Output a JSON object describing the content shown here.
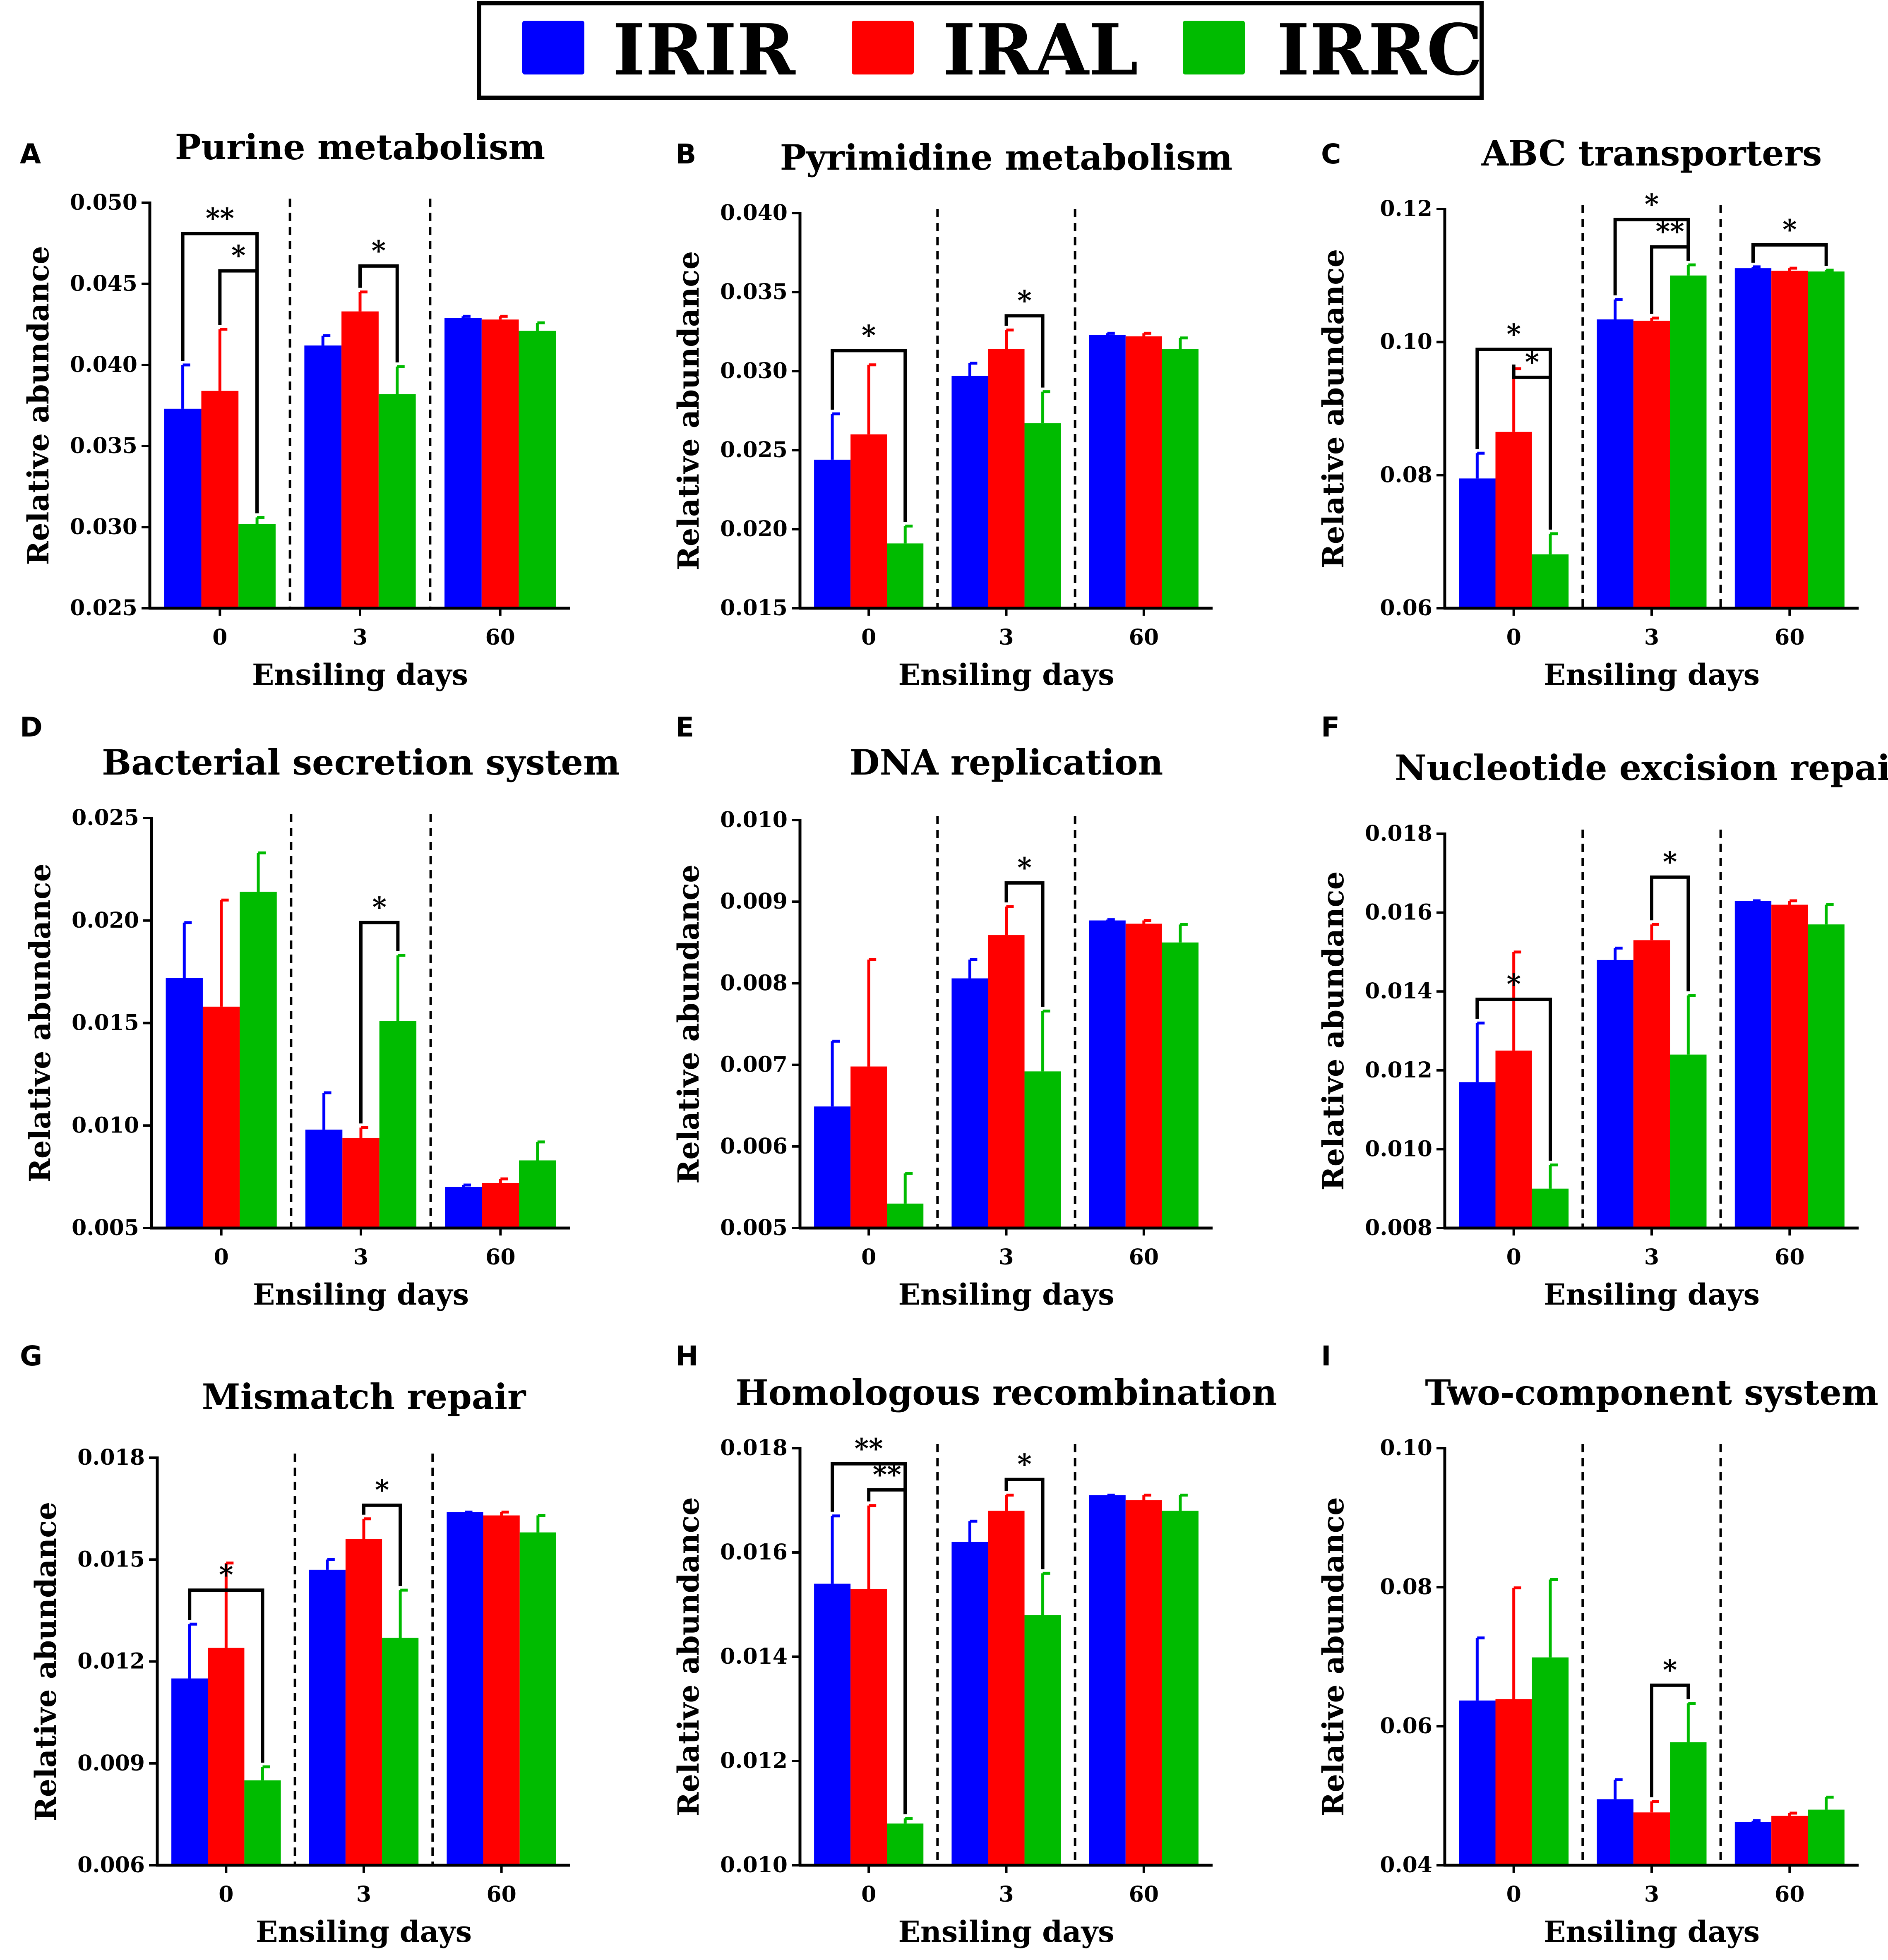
{
  "legend": [
    {
      "name": "IRIR",
      "color": "#0000ff"
    },
    {
      "name": "IRAL",
      "color": "#ff0000"
    },
    {
      "name": "IRRC",
      "color": "#00bb00"
    }
  ],
  "chart_data": [
    {
      "type": "bar",
      "panel": "A",
      "title": "Purine metabolism",
      "xlabel": "Ensiling days",
      "ylabel": "Relative abundance",
      "categories": [
        "0",
        "3",
        "60"
      ],
      "yticks": [
        "0.025",
        "0.030",
        "0.035",
        "0.040",
        "0.045",
        "0.050"
      ],
      "ylim": [
        0.025,
        0.05
      ],
      "series": [
        {
          "name": "IRIR",
          "values": [
            0.0373,
            0.0412,
            0.0429
          ],
          "errors": [
            0.0027,
            0.0006,
            0.0001
          ]
        },
        {
          "name": "IRAL",
          "values": [
            0.0384,
            0.0433,
            0.0428
          ],
          "errors": [
            0.0038,
            0.0012,
            0.0002
          ]
        },
        {
          "name": "IRRC",
          "values": [
            0.0302,
            0.0382,
            0.0421
          ],
          "errors": [
            0.0004,
            0.0017,
            0.0005
          ]
        }
      ],
      "significance": [
        {
          "group": 0,
          "from": 0,
          "to": 2,
          "label": "**",
          "y": 0.0481
        },
        {
          "group": 0,
          "from": 1,
          "to": 2,
          "label": "*",
          "y": 0.0458
        },
        {
          "group": 1,
          "from": 1,
          "to": 2,
          "label": "*",
          "y": 0.0461
        }
      ]
    },
    {
      "type": "bar",
      "panel": "B",
      "title": "Pyrimidine metabolism",
      "xlabel": "Ensiling days",
      "ylabel": "Relative abundance",
      "categories": [
        "0",
        "3",
        "60"
      ],
      "yticks": [
        "0.015",
        "0.020",
        "0.025",
        "0.030",
        "0.035",
        "0.040"
      ],
      "ylim": [
        0.015,
        0.04
      ],
      "series": [
        {
          "name": "IRIR",
          "values": [
            0.0244,
            0.0297,
            0.0323
          ],
          "errors": [
            0.0029,
            0.0008,
            0.0001
          ]
        },
        {
          "name": "IRAL",
          "values": [
            0.026,
            0.0314,
            0.0322
          ],
          "errors": [
            0.0044,
            0.0012,
            0.0002
          ]
        },
        {
          "name": "IRRC",
          "values": [
            0.0191,
            0.0267,
            0.0314
          ],
          "errors": [
            0.0011,
            0.002,
            0.0007
          ]
        }
      ],
      "significance": [
        {
          "group": 0,
          "from": 0,
          "to": 2,
          "label": "*",
          "y": 0.0313
        },
        {
          "group": 1,
          "from": 1,
          "to": 2,
          "label": "*",
          "y": 0.0335
        }
      ]
    },
    {
      "type": "bar",
      "panel": "C",
      "title": "ABC transporters",
      "xlabel": "Ensiling days",
      "ylabel": "Relative abundance",
      "categories": [
        "0",
        "3",
        "60"
      ],
      "yticks": [
        "0.06",
        "0.08",
        "0.10",
        "0.12"
      ],
      "ylim": [
        0.06,
        0.12
      ],
      "series": [
        {
          "name": "IRIR",
          "values": [
            0.0795,
            0.1034,
            0.1111
          ],
          "errors": [
            0.0038,
            0.003,
            0.0002
          ]
        },
        {
          "name": "IRAL",
          "values": [
            0.0865,
            0.1032,
            0.1107
          ],
          "errors": [
            0.0095,
            0.0004,
            0.0004
          ]
        },
        {
          "name": "IRRC",
          "values": [
            0.0681,
            0.11,
            0.1106
          ],
          "errors": [
            0.0031,
            0.0016,
            0.0002
          ]
        }
      ],
      "significance": [
        {
          "group": 0,
          "from": 0,
          "to": 2,
          "label": "*",
          "y": 0.0989
        },
        {
          "group": 0,
          "from": 1,
          "to": 2,
          "label": "*",
          "y": 0.0947
        },
        {
          "group": 1,
          "from": 0,
          "to": 2,
          "label": "*",
          "y": 0.1184
        },
        {
          "group": 1,
          "from": 1,
          "to": 2,
          "label": "**",
          "y": 0.1143
        },
        {
          "group": 2,
          "from": 0,
          "to": 2,
          "label": "*",
          "y": 0.1146
        }
      ]
    },
    {
      "type": "bar",
      "panel": "D",
      "title": "Bacterial secretion system",
      "xlabel": "Ensiling days",
      "ylabel": "Relative abundance",
      "categories": [
        "0",
        "3",
        "60"
      ],
      "yticks": [
        "0.005",
        "0.010",
        "0.015",
        "0.020",
        "0.025"
      ],
      "ylim": [
        0.005,
        0.025
      ],
      "series": [
        {
          "name": "IRIR",
          "values": [
            0.0172,
            0.0098,
            0.007
          ],
          "errors": [
            0.0027,
            0.0018,
            0.0001
          ]
        },
        {
          "name": "IRAL",
          "values": [
            0.0158,
            0.0094,
            0.0072
          ],
          "errors": [
            0.0052,
            0.0005,
            0.0002
          ]
        },
        {
          "name": "IRRC",
          "values": [
            0.0214,
            0.0151,
            0.0083
          ],
          "errors": [
            0.0019,
            0.0032,
            0.0009
          ]
        }
      ],
      "significance": [
        {
          "group": 1,
          "from": 1,
          "to": 2,
          "label": "*",
          "y": 0.0199
        }
      ]
    },
    {
      "type": "bar",
      "panel": "E",
      "title": "DNA replication",
      "xlabel": "Ensiling days",
      "ylabel": "Relative abundance",
      "categories": [
        "0",
        "3",
        "60"
      ],
      "yticks": [
        "0.005",
        "0.006",
        "0.007",
        "0.008",
        "0.009",
        "0.010"
      ],
      "ylim": [
        0.005,
        0.01
      ],
      "series": [
        {
          "name": "IRIR",
          "values": [
            0.00649,
            0.00806,
            0.00877
          ],
          "errors": [
            0.0008,
            0.00023,
            1e-05
          ]
        },
        {
          "name": "IRAL",
          "values": [
            0.00698,
            0.00859,
            0.00873
          ],
          "errors": [
            0.00131,
            0.00035,
            4e-05
          ]
        },
        {
          "name": "IRRC",
          "values": [
            0.0053,
            0.00692,
            0.0085
          ],
          "errors": [
            0.00037,
            0.00074,
            0.00022
          ]
        }
      ],
      "significance": [
        {
          "group": 1,
          "from": 1,
          "to": 2,
          "label": "*",
          "y": 0.00923
        }
      ]
    },
    {
      "type": "bar",
      "panel": "F",
      "title": "Nucleotide excision repair",
      "xlabel": "Ensiling days",
      "ylabel": "Relative abundance",
      "categories": [
        "0",
        "3",
        "60"
      ],
      "yticks": [
        "0.008",
        "0.010",
        "0.012",
        "0.014",
        "0.016",
        "0.018"
      ],
      "ylim": [
        0.008,
        0.018
      ],
      "series": [
        {
          "name": "IRIR",
          "values": [
            0.0117,
            0.0148,
            0.0163
          ],
          "errors": [
            0.0015,
            0.0003,
            0.0
          ]
        },
        {
          "name": "IRAL",
          "values": [
            0.0125,
            0.0153,
            0.0162
          ],
          "errors": [
            0.0025,
            0.0004,
            0.0001
          ]
        },
        {
          "name": "IRRC",
          "values": [
            0.009,
            0.0124,
            0.0157
          ],
          "errors": [
            0.0006,
            0.0015,
            0.0005
          ]
        }
      ],
      "significance": [
        {
          "group": 0,
          "from": 0,
          "to": 2,
          "label": "*",
          "y": 0.0138
        },
        {
          "group": 1,
          "from": 1,
          "to": 2,
          "label": "*",
          "y": 0.0169
        }
      ]
    },
    {
      "type": "bar",
      "panel": "G",
      "title": "Mismatch repair",
      "xlabel": "Ensiling days",
      "ylabel": "Relative abundance",
      "categories": [
        "0",
        "3",
        "60"
      ],
      "yticks": [
        "0.006",
        "0.009",
        "0.012",
        "0.015",
        "0.018"
      ],
      "ylim": [
        0.006,
        0.018
      ],
      "series": [
        {
          "name": "IRIR",
          "values": [
            0.0115,
            0.0147,
            0.0164
          ],
          "errors": [
            0.0016,
            0.0003,
            0.0
          ]
        },
        {
          "name": "IRAL",
          "values": [
            0.0124,
            0.0156,
            0.0163
          ],
          "errors": [
            0.0025,
            0.0006,
            0.0001
          ]
        },
        {
          "name": "IRRC",
          "values": [
            0.0085,
            0.0127,
            0.0158
          ],
          "errors": [
            0.0004,
            0.0014,
            0.0005
          ]
        }
      ],
      "significance": [
        {
          "group": 0,
          "from": 0,
          "to": 2,
          "label": "*",
          "y": 0.0141
        },
        {
          "group": 1,
          "from": 1,
          "to": 2,
          "label": "*",
          "y": 0.0166
        }
      ]
    },
    {
      "type": "bar",
      "panel": "H",
      "title": "Homologous recombination",
      "xlabel": "Ensiling days",
      "ylabel": "Relative abundance",
      "categories": [
        "0",
        "3",
        "60"
      ],
      "yticks": [
        "0.010",
        "0.012",
        "0.014",
        "0.016",
        "0.018"
      ],
      "ylim": [
        0.01,
        0.018
      ],
      "series": [
        {
          "name": "IRIR",
          "values": [
            0.0154,
            0.0162,
            0.0171
          ],
          "errors": [
            0.0013,
            0.0004,
            0.0
          ]
        },
        {
          "name": "IRAL",
          "values": [
            0.0153,
            0.0168,
            0.017
          ],
          "errors": [
            0.0016,
            0.0003,
            0.0001
          ]
        },
        {
          "name": "IRRC",
          "values": [
            0.0108,
            0.0148,
            0.0168
          ],
          "errors": [
            0.0001,
            0.0008,
            0.0003
          ]
        }
      ],
      "significance": [
        {
          "group": 0,
          "from": 0,
          "to": 2,
          "label": "**",
          "y": 0.0177
        },
        {
          "group": 0,
          "from": 1,
          "to": 2,
          "label": "**",
          "y": 0.0172
        },
        {
          "group": 1,
          "from": 1,
          "to": 2,
          "label": "*",
          "y": 0.0174
        }
      ]
    },
    {
      "type": "bar",
      "panel": "I",
      "title": "Two-component system",
      "xlabel": "Ensiling days",
      "ylabel": "Relative abundance",
      "categories": [
        "0",
        "3",
        "60"
      ],
      "yticks": [
        "0.04",
        "0.06",
        "0.08",
        "0.10"
      ],
      "ylim": [
        0.04,
        0.1
      ],
      "series": [
        {
          "name": "IRIR",
          "values": [
            0.0637,
            0.0495,
            0.0462
          ],
          "errors": [
            0.009,
            0.0028,
            0.0002
          ]
        },
        {
          "name": "IRAL",
          "values": [
            0.0639,
            0.0476,
            0.0471
          ],
          "errors": [
            0.016,
            0.0016,
            0.0004
          ]
        },
        {
          "name": "IRRC",
          "values": [
            0.0699,
            0.0577,
            0.048
          ],
          "errors": [
            0.0112,
            0.0056,
            0.0018
          ]
        }
      ],
      "significance": [
        {
          "group": 1,
          "from": 1,
          "to": 2,
          "label": "*",
          "y": 0.0659
        }
      ]
    }
  ]
}
